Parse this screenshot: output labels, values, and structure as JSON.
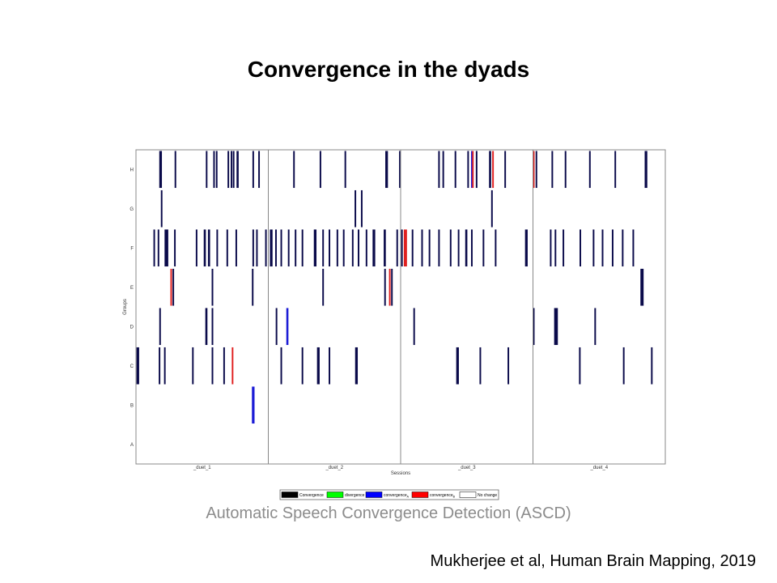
{
  "slide": {
    "title": "Convergence in the dyads",
    "subtitle": "Automatic Speech Convergence Detection (ASCD)",
    "citation": "Mukherjee et al, Human Brain Mapping, 2019"
  },
  "chart_data": {
    "type": "event-raster",
    "xlabel": "Sessions",
    "ylabel": "Groups",
    "groups": [
      "H",
      "G",
      "F",
      "E",
      "D",
      "C",
      "B",
      "A"
    ],
    "sessions": [
      "_duet_1",
      "_duet_2",
      "_duet_3",
      "_duet_4"
    ],
    "x_range": [
      0,
      100
    ],
    "legend": [
      {
        "key": "convergence",
        "label": "Convergence",
        "color": "#000000"
      },
      {
        "key": "divergence",
        "label": "divergence",
        "color": "#00ff00"
      },
      {
        "key": "convergenceA",
        "label": "convergence",
        "sub": "A",
        "color": "#0000ff"
      },
      {
        "key": "convergenceB",
        "label": "convergence",
        "sub": "B",
        "color": "#ff0000"
      },
      {
        "key": "nochange",
        "label": "No change",
        "color": "#ffffff"
      }
    ],
    "colors": {
      "convergence": "#0a0a4a",
      "convergenceA": "#1c1cd6",
      "convergenceB": "#e02020",
      "border": "#888888"
    },
    "events": {
      "H": [
        [
          4.4,
          0.5,
          "convergence"
        ],
        [
          7.3,
          0.3,
          "convergence"
        ],
        [
          13.2,
          0.3,
          "convergence"
        ],
        [
          14.6,
          0.3,
          "convergence"
        ],
        [
          15.1,
          0.3,
          "convergence"
        ],
        [
          17.3,
          0.3,
          "convergence"
        ],
        [
          17.9,
          0.3,
          "convergence"
        ],
        [
          18.3,
          0.3,
          "convergence"
        ],
        [
          19.0,
          0.4,
          "convergence"
        ],
        [
          22.0,
          0.3,
          "convergence"
        ],
        [
          23.1,
          0.3,
          "convergence"
        ],
        [
          29.7,
          0.3,
          "convergence"
        ],
        [
          34.7,
          0.3,
          "convergence"
        ],
        [
          39.4,
          0.3,
          "convergence"
        ],
        [
          47.1,
          0.5,
          "convergence"
        ],
        [
          49.7,
          0.3,
          "convergence"
        ],
        [
          57.1,
          0.3,
          "convergence"
        ],
        [
          57.9,
          0.3,
          "convergence"
        ],
        [
          60.2,
          0.3,
          "convergence"
        ],
        [
          62.6,
          0.3,
          "convergence"
        ],
        [
          63.3,
          0.3,
          "convergenceA"
        ],
        [
          63.5,
          0.3,
          "convergenceB"
        ],
        [
          64.2,
          0.3,
          "convergence"
        ],
        [
          66.7,
          0.4,
          "convergence"
        ],
        [
          67.3,
          0.3,
          "convergenceB"
        ],
        [
          69.6,
          0.3,
          "convergence"
        ],
        [
          75.0,
          0.3,
          "convergenceB"
        ],
        [
          75.5,
          0.3,
          "convergence"
        ],
        [
          78.5,
          0.3,
          "convergence"
        ],
        [
          81.0,
          0.3,
          "convergence"
        ],
        [
          85.6,
          0.3,
          "convergence"
        ],
        [
          90.4,
          0.3,
          "convergence"
        ],
        [
          96.1,
          0.5,
          "convergence"
        ]
      ],
      "G": [
        [
          4.7,
          0.3,
          "convergence"
        ],
        [
          41.3,
          0.3,
          "convergence"
        ],
        [
          42.5,
          0.3,
          "convergence"
        ],
        [
          67.1,
          0.3,
          "convergence"
        ]
      ],
      "F": [
        [
          3.3,
          0.3,
          "convergence"
        ],
        [
          4.1,
          0.3,
          "convergence"
        ],
        [
          5.4,
          0.7,
          "convergence"
        ],
        [
          7.2,
          0.3,
          "convergence"
        ],
        [
          11.3,
          0.3,
          "convergence"
        ],
        [
          12.8,
          0.4,
          "convergence"
        ],
        [
          13.6,
          0.4,
          "convergence"
        ],
        [
          15.2,
          0.3,
          "convergence"
        ],
        [
          17.1,
          0.3,
          "convergence"
        ],
        [
          18.8,
          0.3,
          "convergence"
        ],
        [
          22.0,
          0.3,
          "convergence"
        ],
        [
          22.7,
          0.3,
          "convergence"
        ],
        [
          24.4,
          0.3,
          "convergence"
        ],
        [
          25.3,
          0.5,
          "convergence"
        ],
        [
          26.3,
          0.3,
          "convergence"
        ],
        [
          27.3,
          0.3,
          "convergence"
        ],
        [
          28.7,
          0.3,
          "convergence"
        ],
        [
          30.0,
          0.3,
          "convergence"
        ],
        [
          31.3,
          0.3,
          "convergence"
        ],
        [
          33.6,
          0.5,
          "convergence"
        ],
        [
          35.2,
          0.3,
          "convergence"
        ],
        [
          36.4,
          0.3,
          "convergence"
        ],
        [
          37.9,
          0.3,
          "convergence"
        ],
        [
          39.1,
          0.3,
          "convergence"
        ],
        [
          40.8,
          0.3,
          "convergence"
        ],
        [
          41.9,
          0.3,
          "convergence"
        ],
        [
          43.4,
          0.3,
          "convergence"
        ],
        [
          44.7,
          0.5,
          "convergence"
        ],
        [
          46.8,
          0.4,
          "convergence"
        ],
        [
          49.2,
          0.3,
          "convergence"
        ],
        [
          50.1,
          0.3,
          "convergence"
        ],
        [
          50.6,
          0.6,
          "convergenceB"
        ],
        [
          52.1,
          0.3,
          "convergence"
        ],
        [
          53.9,
          0.3,
          "convergence"
        ],
        [
          55.3,
          0.3,
          "convergence"
        ],
        [
          57.1,
          0.3,
          "convergence"
        ],
        [
          59.3,
          0.3,
          "convergence"
        ],
        [
          60.8,
          0.3,
          "convergence"
        ],
        [
          62.2,
          0.4,
          "convergence"
        ],
        [
          63.3,
          0.3,
          "convergence"
        ],
        [
          65.5,
          0.3,
          "convergence"
        ],
        [
          67.8,
          0.3,
          "convergence"
        ],
        [
          73.5,
          0.5,
          "convergence"
        ],
        [
          78.2,
          0.3,
          "convergence"
        ],
        [
          79.1,
          0.3,
          "convergence"
        ],
        [
          80.6,
          0.3,
          "convergence"
        ],
        [
          83.8,
          0.3,
          "convergence"
        ],
        [
          86.3,
          0.3,
          "convergence"
        ],
        [
          88.0,
          0.3,
          "convergence"
        ],
        [
          89.9,
          0.3,
          "convergence"
        ],
        [
          91.8,
          0.3,
          "convergence"
        ],
        [
          93.8,
          0.3,
          "convergence"
        ]
      ],
      "E": [
        [
          6.5,
          0.3,
          "convergenceB"
        ],
        [
          6.9,
          0.3,
          "convergence"
        ],
        [
          14.3,
          0.3,
          "convergence"
        ],
        [
          21.9,
          0.3,
          "convergence"
        ],
        [
          35.2,
          0.3,
          "convergence"
        ],
        [
          46.9,
          0.3,
          "convergence"
        ],
        [
          47.8,
          0.3,
          "convergenceB"
        ],
        [
          48.2,
          0.3,
          "convergence"
        ],
        [
          95.3,
          0.6,
          "convergence"
        ]
      ],
      "D": [
        [
          4.4,
          0.3,
          "convergence"
        ],
        [
          13.1,
          0.4,
          "convergence"
        ],
        [
          14.3,
          0.3,
          "convergence"
        ],
        [
          26.4,
          0.3,
          "convergence"
        ],
        [
          28.4,
          0.4,
          "convergenceA"
        ],
        [
          52.4,
          0.3,
          "convergence"
        ],
        [
          75.0,
          0.3,
          "convergence"
        ],
        [
          79.0,
          0.7,
          "convergence"
        ],
        [
          86.6,
          0.3,
          "convergence"
        ]
      ],
      "C": [
        [
          0.1,
          0.5,
          "convergence"
        ],
        [
          4.3,
          0.3,
          "convergence"
        ],
        [
          5.3,
          0.3,
          "convergence"
        ],
        [
          10.6,
          0.3,
          "convergence"
        ],
        [
          14.3,
          0.3,
          "convergence"
        ],
        [
          16.5,
          0.3,
          "convergence"
        ],
        [
          18.1,
          0.3,
          "convergenceB"
        ],
        [
          27.3,
          0.3,
          "convergence"
        ],
        [
          31.3,
          0.3,
          "convergence"
        ],
        [
          34.2,
          0.5,
          "convergence"
        ],
        [
          36.4,
          0.3,
          "convergence"
        ],
        [
          41.4,
          0.5,
          "convergence"
        ],
        [
          60.5,
          0.5,
          "convergence"
        ],
        [
          64.9,
          0.3,
          "convergence"
        ],
        [
          70.2,
          0.3,
          "convergence"
        ],
        [
          83.7,
          0.3,
          "convergence"
        ],
        [
          92.0,
          0.3,
          "convergence"
        ],
        [
          97.3,
          0.3,
          "convergence"
        ]
      ],
      "B": [
        [
          21.9,
          0.5,
          "convergenceA"
        ]
      ],
      "A": []
    }
  }
}
